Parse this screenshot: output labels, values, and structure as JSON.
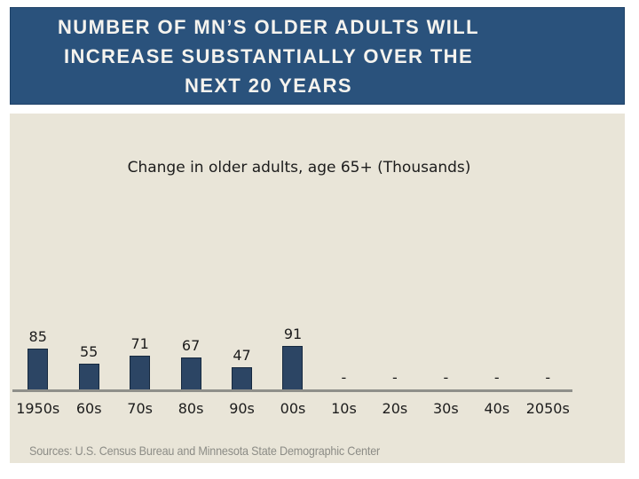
{
  "slide": {
    "title": "NUMBER OF MN’S OLDER ADULTS WILL\nINCREASE SUBSTANTIALLY OVER THE\nNEXT 20 YEARS",
    "source_note": "Sources: U.S. Census Bureau and Minnesota State Demographic Center"
  },
  "chart_data": {
    "type": "bar",
    "title": "Change in older adults, age 65+ (Thousands)",
    "categories": [
      "1950s",
      "60s",
      "70s",
      "80s",
      "90s",
      "00s",
      "10s",
      "20s",
      "30s",
      "40s",
      "2050s"
    ],
    "values": [
      85,
      55,
      71,
      67,
      47,
      91,
      null,
      null,
      null,
      null,
      null
    ],
    "zero_value_label": "-",
    "data_labels": "above bars",
    "ylim": [
      0,
      100
    ],
    "grid": false,
    "legend": false,
    "bar_color": "#2C4564",
    "bar_border_color": "#16293F",
    "axis_line_color": "#8F8F8A",
    "label_color": "#1C1C1C"
  },
  "colors": {
    "page_bg": "#FFFFFF",
    "title_bar_bg": "#2A527C",
    "title_text": "#F5F3EE",
    "panel_bg": "#E9E5D8",
    "source_text": "#8C8C86"
  }
}
